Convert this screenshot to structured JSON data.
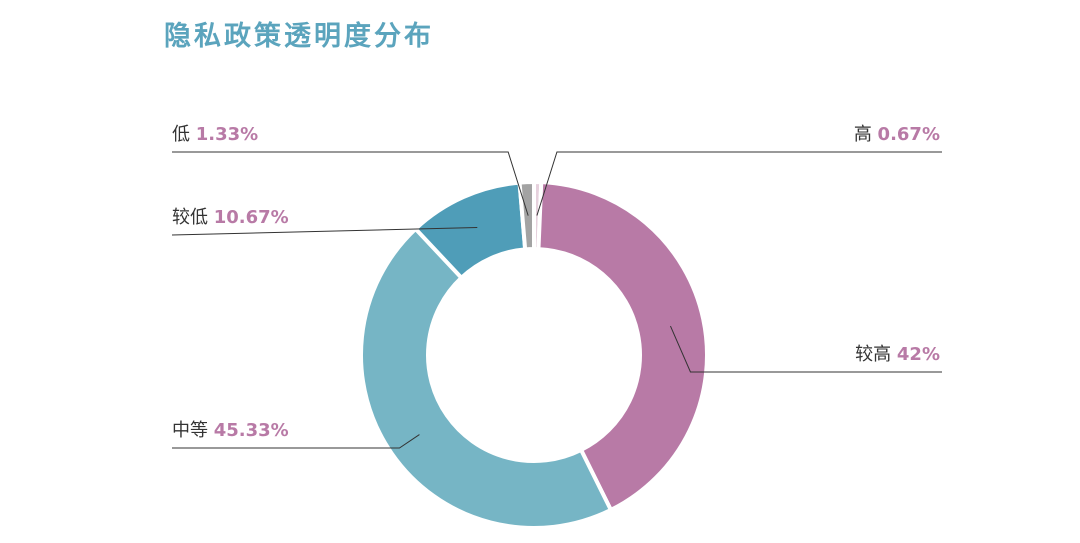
{
  "chart_data": {
    "type": "pie",
    "title": "隐私政策透明度分布",
    "slices": [
      {
        "label": "高",
        "value": 0.67,
        "value_label": "0.67%",
        "color": "#e6d1dd"
      },
      {
        "label": "较高",
        "value": 42,
        "value_label": "42%",
        "color": "#b87aa6"
      },
      {
        "label": "中等",
        "value": 45.33,
        "value_label": "45.33%",
        "color": "#76b5c5"
      },
      {
        "label": "较低",
        "value": 10.67,
        "value_label": "10.67%",
        "color": "#4f9db8"
      },
      {
        "label": "低",
        "value": 1.33,
        "value_label": "1.33%",
        "color": "#a3a3a3"
      }
    ],
    "legend": "none",
    "donut": true
  }
}
